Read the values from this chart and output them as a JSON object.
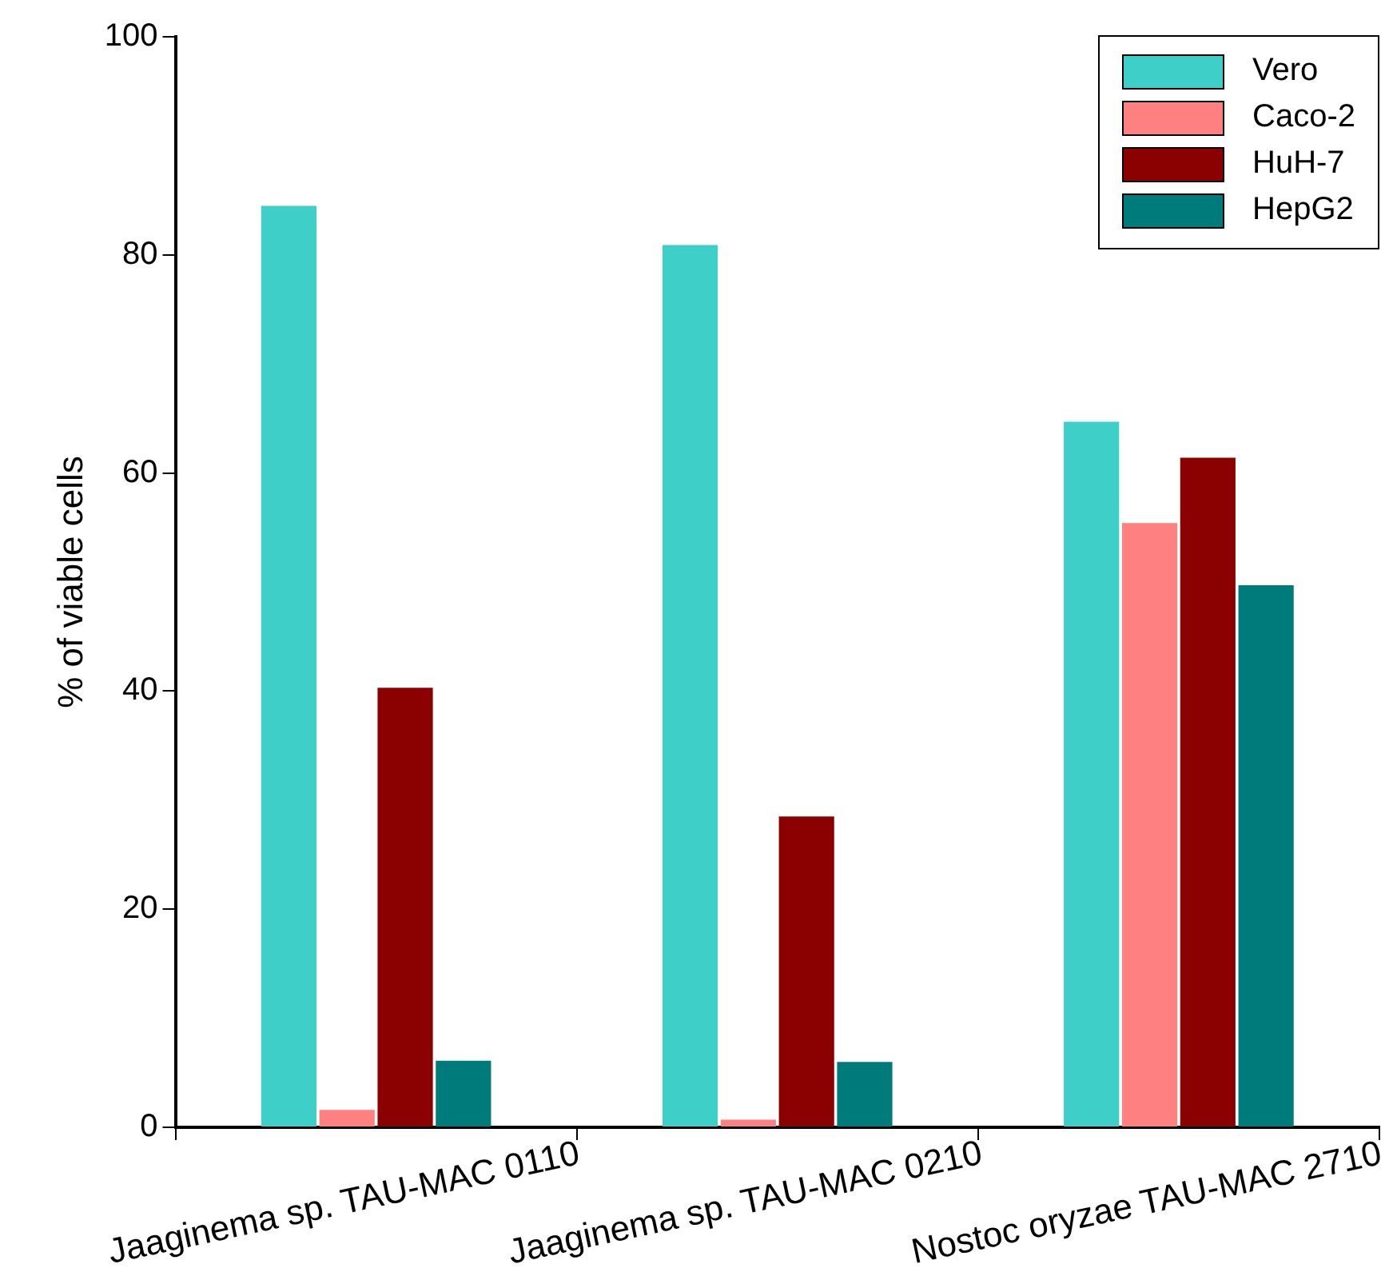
{
  "chart_data": {
    "type": "bar",
    "ylabel": "% of viable cells",
    "categories": [
      "Jaaginema sp. TAU-MAC 0110",
      "Jaaginema sp. TAU-MAC 0210",
      "Nostoc oryzae TAU-MAC 2710"
    ],
    "series": [
      {
        "name": "Vero",
        "color": "#3ecfc9",
        "values": [
          84.5,
          80.9,
          64.7
        ]
      },
      {
        "name": "Caco-2",
        "color": "#ff8080",
        "values": [
          1.6,
          0.7,
          55.4
        ]
      },
      {
        "name": "HuH-7",
        "color": "#8b0000",
        "values": [
          40.3,
          28.5,
          61.4
        ]
      },
      {
        "name": "HepG2",
        "color": "#007b7b",
        "values": [
          6.1,
          6.0,
          49.7
        ]
      }
    ],
    "ylim": [
      0,
      100
    ],
    "yticks": [
      0,
      20,
      40,
      60,
      80,
      100
    ],
    "grid": false,
    "legend": "top right"
  }
}
